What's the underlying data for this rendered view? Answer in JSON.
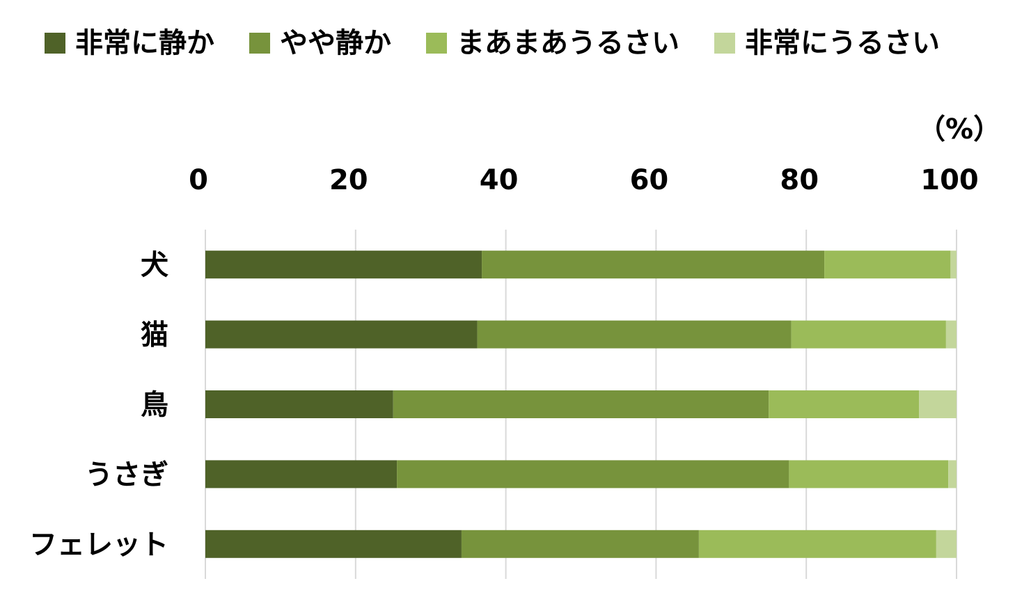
{
  "chart_data": {
    "type": "bar",
    "orientation": "horizontal",
    "stacked": true,
    "unit_label": "（%）",
    "xlim": [
      0,
      100
    ],
    "x_ticks": [
      "0",
      "20",
      "40",
      "60",
      "80",
      "100"
    ],
    "x_axis_position": "top",
    "grid": true,
    "legend_position": "top",
    "categories": [
      "犬",
      "猫",
      "鳥",
      "うさぎ",
      "フェレット"
    ],
    "series": [
      {
        "name": "非常に静か",
        "color": "#4f6228",
        "values": [
          36.8,
          36.2,
          25.0,
          25.5,
          34.1
        ]
      },
      {
        "name": "やや静か",
        "color": "#77933c",
        "values": [
          45.6,
          41.8,
          50.0,
          52.2,
          31.6
        ]
      },
      {
        "name": "まあまあうるさい",
        "color": "#9bbb59",
        "values": [
          16.8,
          20.6,
          20.0,
          21.2,
          31.6
        ]
      },
      {
        "name": "非常にうるさい",
        "color": "#c3d69b",
        "values": [
          0.8,
          1.4,
          5.0,
          1.1,
          2.7
        ]
      }
    ]
  }
}
